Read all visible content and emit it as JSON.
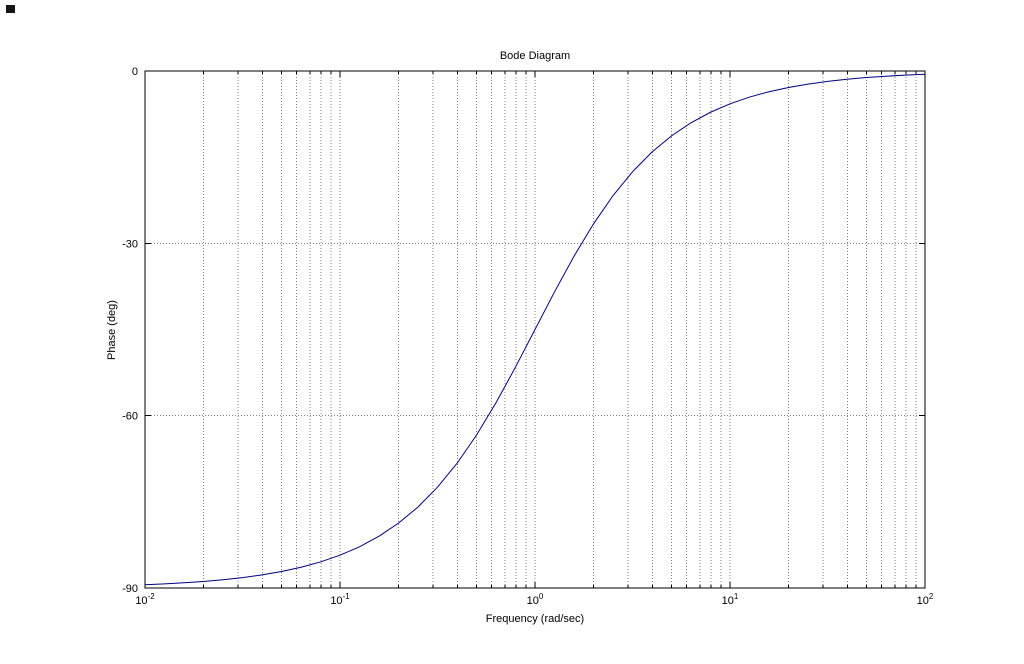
{
  "figure": {
    "background": "#ffffff"
  },
  "chart_data": {
    "type": "line",
    "title": "Bode Diagram",
    "xlabel": "Frequency  (rad/sec)",
    "ylabel": "Phase (deg)",
    "xscale": "log",
    "xlim": [
      0.01,
      100
    ],
    "ylim": [
      -90,
      0
    ],
    "yticks": [
      0,
      -30,
      -60,
      -90
    ],
    "ytick_labels": [
      "0",
      "-30",
      "-60",
      "-90"
    ],
    "xticks": [
      0.01,
      0.1,
      1,
      10,
      100
    ],
    "xtick_labels": [
      "10^-2",
      "10^-1",
      "10^0",
      "10^1",
      "10^2"
    ],
    "grid": true,
    "minor_grid": true,
    "line_color": "#000080",
    "grid_color": "#808080",
    "axis_color": "#000000",
    "series": [
      {
        "name": "phase",
        "x": [
          0.01,
          0.012589,
          0.015849,
          0.019953,
          0.025119,
          0.031623,
          0.039811,
          0.050119,
          0.063096,
          0.079433,
          0.1,
          0.12589,
          0.15849,
          0.19953,
          0.25119,
          0.31623,
          0.39811,
          0.50119,
          0.63096,
          0.79433,
          1,
          1.2589,
          1.5849,
          1.9953,
          2.5119,
          3.1623,
          3.9811,
          5.0119,
          6.3096,
          7.9433,
          10,
          12.589,
          15.849,
          19.953,
          25.119,
          31.623,
          39.811,
          50.119,
          63.096,
          79.433,
          100
        ],
        "y": [
          -89.43,
          -89.28,
          -89.09,
          -88.86,
          -88.56,
          -88.19,
          -87.72,
          -87.13,
          -86.39,
          -85.46,
          -84.29,
          -82.83,
          -80.99,
          -78.71,
          -75.9,
          -72.45,
          -68.3,
          -63.39,
          -57.75,
          -51.54,
          -45,
          -38.46,
          -32.25,
          -26.62,
          -21.7,
          -17.55,
          -14.1,
          -11.29,
          -9.01,
          -7.18,
          -5.71,
          -4.54,
          -3.61,
          -2.87,
          -2.28,
          -1.81,
          -1.44,
          -1.14,
          -0.91,
          -0.72,
          -0.57
        ]
      }
    ]
  }
}
